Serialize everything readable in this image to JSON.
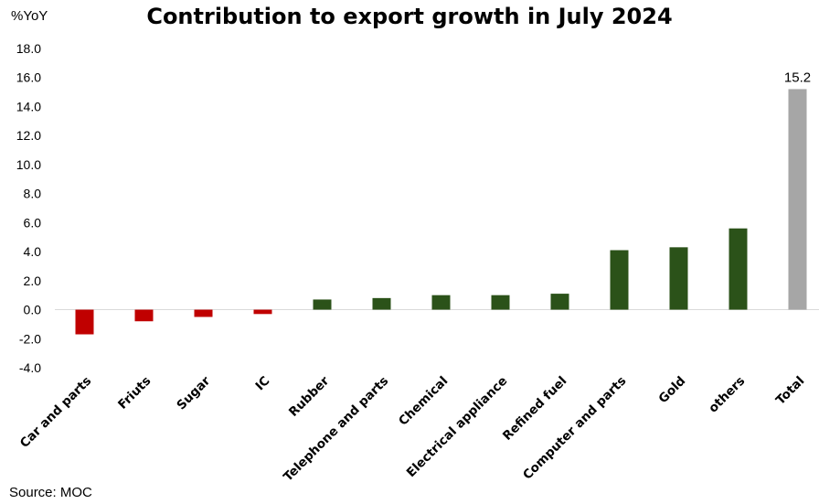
{
  "chart_data": {
    "type": "bar",
    "title": "Contribution to export growth in July 2024",
    "ylabel": "%YoY",
    "ylim": [
      -4.0,
      18.0
    ],
    "yticks": [
      "18.0",
      "16.0",
      "14.0",
      "12.0",
      "10.0",
      "8.0",
      "6.0",
      "4.0",
      "2.0",
      "0.0",
      "-2.0",
      "-4.0"
    ],
    "categories": [
      "Car and parts",
      "Friuts",
      "Sugar",
      "IC",
      "Rubber",
      "Telephone and parts",
      "Chemical",
      "Electrical appliance",
      "Refined fuel",
      "Computer and parts",
      "Gold",
      "others",
      "Total"
    ],
    "values": [
      -1.7,
      -0.8,
      -0.5,
      -0.3,
      0.7,
      0.8,
      1.0,
      1.0,
      1.1,
      4.1,
      4.3,
      5.6,
      15.2
    ],
    "data_labels": [
      {
        "category": "Total",
        "text": "15.2"
      }
    ],
    "colors": {
      "negative": "#c00000",
      "positive": "#2b5219",
      "total": "#a6a6a6"
    },
    "grid": false,
    "legend": "none"
  },
  "source": "Source: MOC"
}
